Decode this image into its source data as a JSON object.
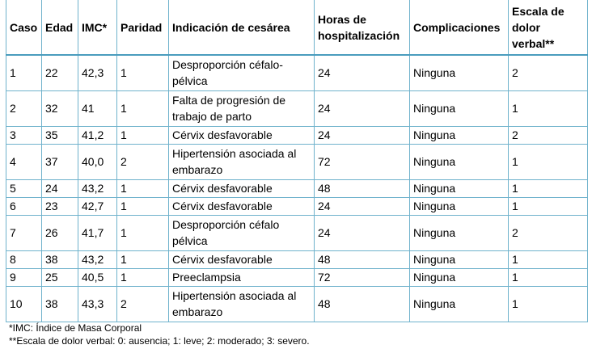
{
  "table": {
    "headers": [
      "Caso",
      "Edad",
      "IMC*",
      "Paridad",
      "Indicación de cesárea",
      "Horas de hospitalización",
      "Complicaciones",
      "Escala de dolor verbal**"
    ],
    "rows": [
      [
        "1",
        "22",
        "42,3",
        "1",
        "Desproporción céfalo-pélvica",
        "24",
        "Ninguna",
        "2"
      ],
      [
        "2",
        "32",
        "41",
        "1",
        "Falta de progresión de trabajo de parto",
        "24",
        "Ninguna",
        "1"
      ],
      [
        "3",
        "35",
        "41,2",
        "1",
        "Cérvix desfavorable",
        "24",
        "Ninguna",
        "2"
      ],
      [
        "4",
        "37",
        "40,0",
        "2",
        "Hipertensión asociada al embarazo",
        "72",
        "Ninguna",
        "1"
      ],
      [
        "5",
        "24",
        "43,2",
        "1",
        "Cérvix desfavorable",
        "48",
        "Ninguna",
        "1"
      ],
      [
        "6",
        "23",
        "42,7",
        "1",
        "Cérvix desfavorable",
        "24",
        "Ninguna",
        "1"
      ],
      [
        "7",
        "26",
        "41,7",
        "1",
        "Desproporción céfalo pélvica",
        "24",
        "Ninguna",
        "2"
      ],
      [
        "8",
        "38",
        "43,2",
        "1",
        "Cérvix desfavorable",
        "48",
        "Ninguna",
        "1"
      ],
      [
        "9",
        "25",
        "40,5",
        "1",
        "Preeclampsia",
        "72",
        "Ninguna",
        "1"
      ],
      [
        "10",
        "38",
        "43,3",
        "2",
        "Hipertensión asociada al embarazo",
        "48",
        "Ninguna",
        "1"
      ]
    ]
  },
  "notes": {
    "imc": "*IMC: Índice de Masa Corporal",
    "pain_scale": "**Escala de dolor verbal: 0: ausencia; 1: leve; 2: moderado; 3: severo."
  },
  "colors": {
    "border": "#6fb2cc",
    "header_rule": "#4a9cbd"
  }
}
